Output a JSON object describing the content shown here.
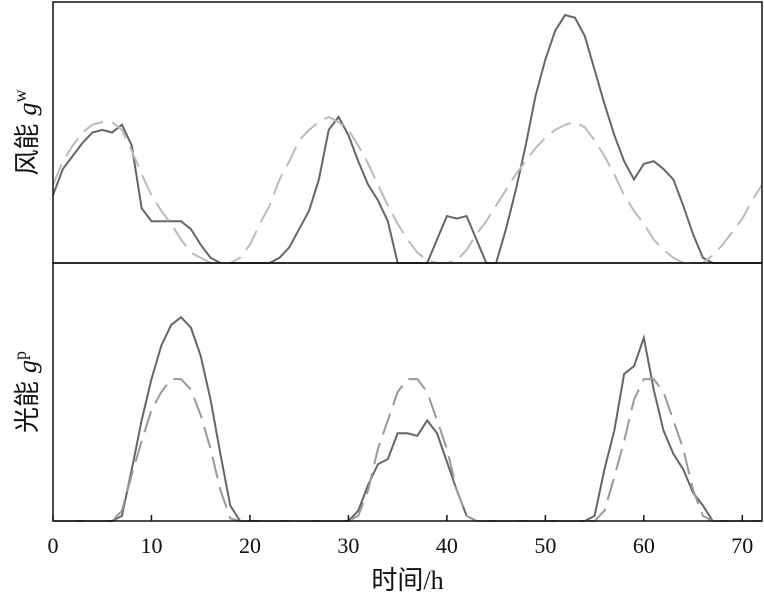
{
  "charts": [
    {
      "type": "line",
      "ylabel": "风能",
      "ylabel_symbol": "g",
      "ylabel_sup": "w",
      "x": [
        0,
        1,
        2,
        3,
        4,
        5,
        6,
        7,
        8,
        9,
        10,
        11,
        12,
        13,
        14,
        15,
        16,
        17,
        18,
        19,
        20,
        21,
        22,
        23,
        24,
        25,
        26,
        27,
        28,
        29,
        30,
        31,
        32,
        33,
        34,
        35,
        36,
        37,
        38,
        39,
        40,
        41,
        42,
        43,
        44,
        45,
        46,
        47,
        48,
        49,
        50,
        51,
        52,
        53,
        54,
        55,
        56,
        57,
        58,
        59,
        60,
        61,
        62,
        63,
        64,
        65,
        66,
        67,
        68,
        69,
        70,
        71,
        72
      ],
      "xlim": [
        0,
        72
      ],
      "ylim": [
        0,
        1
      ],
      "series": [
        {
          "color": "#666666",
          "dash": "solid",
          "values": [
            0.26,
            0.36,
            0.41,
            0.46,
            0.5,
            0.51,
            0.5,
            0.53,
            0.45,
            0.21,
            0.16,
            0.16,
            0.16,
            0.16,
            0.13,
            0.07,
            0.02,
            0,
            0,
            0,
            0,
            0,
            0,
            0.02,
            0.06,
            0.13,
            0.2,
            0.32,
            0.51,
            0.56,
            0.49,
            0.39,
            0.3,
            0.24,
            0.16,
            0,
            0,
            0,
            0,
            0.09,
            0.18,
            0.17,
            0.18,
            0.09,
            0,
            0,
            0.13,
            0.28,
            0.45,
            0.64,
            0.78,
            0.89,
            0.95,
            0.94,
            0.87,
            0.74,
            0.61,
            0.49,
            0.39,
            0.32,
            0.38,
            0.39,
            0.36,
            0.32,
            0.22,
            0.11,
            0.02,
            0,
            0,
            0,
            0,
            0,
            0
          ]
        },
        {
          "color": "#bbbbbb",
          "dash": "dashed",
          "values": [
            0.3,
            0.39,
            0.45,
            0.5,
            0.53,
            0.54,
            0.54,
            0.51,
            0.43,
            0.34,
            0.26,
            0.2,
            0.15,
            0.09,
            0.04,
            0.02,
            0,
            0,
            0,
            0.02,
            0.07,
            0.15,
            0.22,
            0.32,
            0.39,
            0.47,
            0.51,
            0.54,
            0.56,
            0.54,
            0.51,
            0.45,
            0.38,
            0.3,
            0.22,
            0.15,
            0.09,
            0.04,
            0.01,
            0,
            0,
            0.01,
            0.05,
            0.11,
            0.16,
            0.22,
            0.28,
            0.34,
            0.39,
            0.44,
            0.48,
            0.51,
            0.53,
            0.54,
            0.52,
            0.47,
            0.41,
            0.34,
            0.26,
            0.2,
            0.15,
            0.09,
            0.05,
            0.02,
            0,
            0,
            0,
            0.03,
            0.07,
            0.12,
            0.17,
            0.24,
            0.3
          ]
        }
      ]
    },
    {
      "type": "line",
      "ylabel": "光能",
      "ylabel_symbol": "g",
      "ylabel_sup": "p",
      "xlabel": "时间/h",
      "x": [
        0,
        1,
        2,
        3,
        4,
        5,
        6,
        7,
        8,
        9,
        10,
        11,
        12,
        13,
        14,
        15,
        16,
        17,
        18,
        19,
        20,
        21,
        22,
        23,
        24,
        25,
        26,
        27,
        28,
        29,
        30,
        31,
        32,
        33,
        34,
        35,
        36,
        37,
        38,
        39,
        40,
        41,
        42,
        43,
        44,
        45,
        46,
        47,
        48,
        49,
        50,
        51,
        52,
        53,
        54,
        55,
        56,
        57,
        58,
        59,
        60,
        61,
        62,
        63,
        64,
        65,
        66,
        67,
        68,
        69,
        70,
        71,
        72
      ],
      "xlim": [
        0,
        72
      ],
      "ylim": [
        0,
        1
      ],
      "xticks": [
        0,
        10,
        20,
        30,
        40,
        50,
        60,
        70
      ],
      "series": [
        {
          "color": "#666666",
          "dash": "solid",
          "values": [
            0,
            0,
            0,
            0,
            0,
            0,
            0,
            0.02,
            0.2,
            0.39,
            0.55,
            0.68,
            0.76,
            0.79,
            0.75,
            0.64,
            0.47,
            0.26,
            0.06,
            0,
            0,
            0,
            0,
            0,
            0,
            0,
            0,
            0,
            0,
            0,
            0,
            0.04,
            0.14,
            0.22,
            0.24,
            0.34,
            0.34,
            0.33,
            0.39,
            0.34,
            0.23,
            0.12,
            0.02,
            0,
            0,
            0,
            0,
            0,
            0,
            0,
            0,
            0,
            0,
            0,
            0,
            0.02,
            0.2,
            0.35,
            0.57,
            0.6,
            0.71,
            0.51,
            0.35,
            0.26,
            0.2,
            0.11,
            0.06,
            0,
            0,
            0,
            0,
            0,
            0
          ]
        },
        {
          "color": "#999999",
          "dash": "dashed",
          "values": [
            0,
            0,
            0,
            0,
            0,
            0,
            0,
            0.04,
            0.18,
            0.31,
            0.43,
            0.5,
            0.55,
            0.55,
            0.51,
            0.41,
            0.28,
            0.12,
            0.01,
            0,
            0,
            0,
            0,
            0,
            0,
            0,
            0,
            0,
            0,
            0,
            0,
            0.02,
            0.12,
            0.28,
            0.39,
            0.5,
            0.55,
            0.55,
            0.5,
            0.39,
            0.28,
            0.12,
            0.02,
            0,
            0,
            0,
            0,
            0,
            0,
            0,
            0,
            0,
            0,
            0,
            0,
            0,
            0.04,
            0.17,
            0.31,
            0.47,
            0.55,
            0.55,
            0.5,
            0.39,
            0.28,
            0.12,
            0.02,
            0,
            0,
            0,
            0,
            0,
            0
          ]
        }
      ]
    }
  ]
}
